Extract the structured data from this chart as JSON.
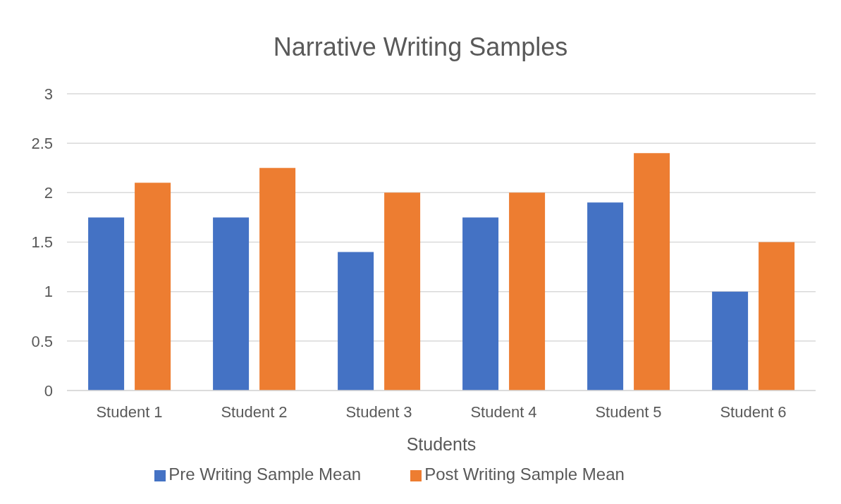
{
  "chart_data": {
    "type": "bar",
    "title": "Narrative Writing Samples",
    "xlabel": "Students",
    "categories": [
      "Student 1",
      "Student 2",
      "Student 3",
      "Student 4",
      "Student 5",
      "Student 6"
    ],
    "series": [
      {
        "name": "Pre Writing Sample Mean",
        "color": "#4472c4",
        "values": [
          1.75,
          1.75,
          1.4,
          1.75,
          1.9,
          1.0
        ]
      },
      {
        "name": "Post Writing Sample Mean",
        "color": "#ed7d31",
        "values": [
          2.1,
          2.25,
          2.0,
          2.0,
          2.4,
          1.5
        ]
      }
    ],
    "ylim": [
      0,
      3
    ],
    "yticks": [
      0,
      0.5,
      1,
      1.5,
      2,
      2.5,
      3
    ],
    "grid": "y",
    "legend": "bottom"
  }
}
